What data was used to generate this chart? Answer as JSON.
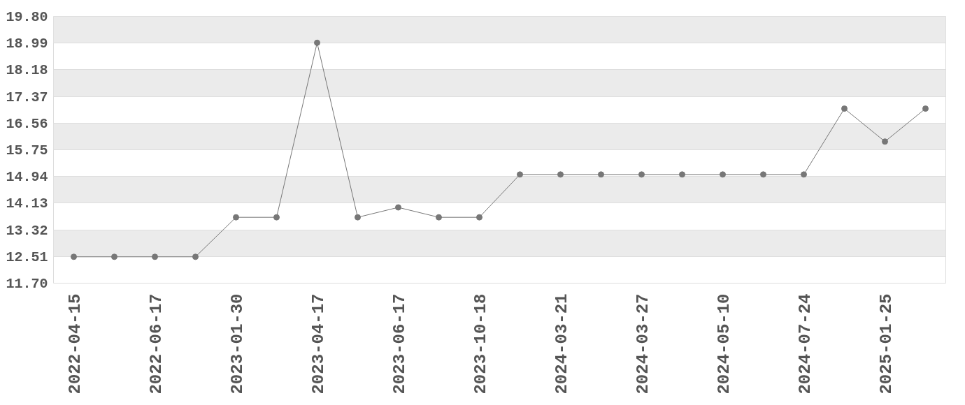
{
  "chart_data": {
    "type": "line",
    "categories": [
      "2022-04-15",
      null,
      "2022-06-17",
      null,
      "2023-01-30",
      null,
      "2023-04-17",
      null,
      "2023-06-17",
      null,
      "2023-10-18",
      null,
      "2024-03-21",
      null,
      "2024-03-27",
      null,
      "2024-05-10",
      null,
      "2024-07-24",
      null,
      "2025-01-25",
      null
    ],
    "series": [
      {
        "color": "#777777",
        "values": [
          12.5,
          12.5,
          12.5,
          12.5,
          13.7,
          13.7,
          19.0,
          13.7,
          14.0,
          13.7,
          13.7,
          15.0,
          15.0,
          15.0,
          15.0,
          15.0,
          15.0,
          15.0,
          15.0,
          17.0,
          16.0,
          17.0
        ]
      }
    ],
    "ylim": [
      11.7,
      19.8
    ],
    "yticks": [
      {
        "value": 11.7,
        "label": "11.70"
      },
      12.51,
      13.32,
      14.13,
      14.94,
      15.75,
      16.56,
      17.37,
      18.18,
      18.99,
      {
        "value": 19.8,
        "label": "19.80"
      }
    ],
    "grid": "y",
    "marker": "circle",
    "line_style": "solid"
  }
}
